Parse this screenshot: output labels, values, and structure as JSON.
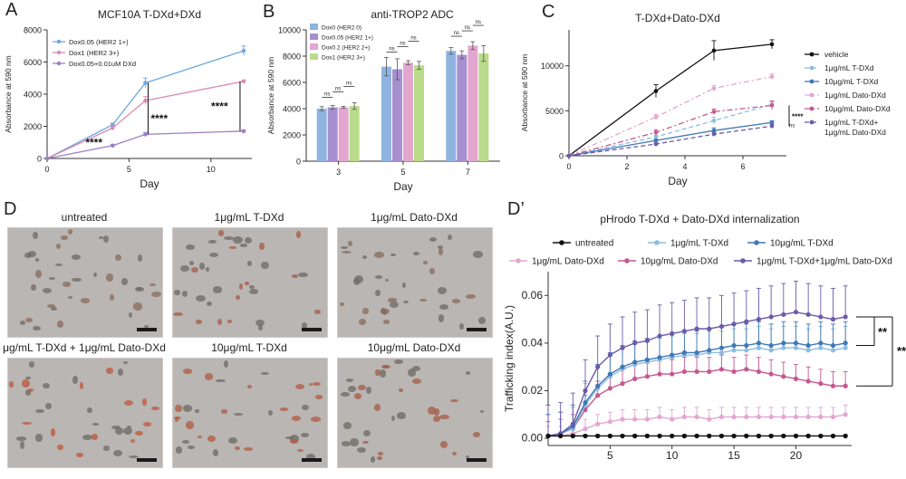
{
  "panels": {
    "A": {
      "letter": "A"
    },
    "B": {
      "letter": "B"
    },
    "C": {
      "letter": "C"
    },
    "D": {
      "letter": "D"
    },
    "D2": {
      "letter": "D’"
    }
  },
  "chart_data": [
    {
      "id": "A",
      "type": "line",
      "title": "MCF10A T-DXd+DXd",
      "xlabel": "Day",
      "ylabel": "Absorbance at 590 nm",
      "xlim": [
        0,
        12.5
      ],
      "ylim": [
        0,
        8000
      ],
      "xticks": [
        0,
        5,
        10
      ],
      "yticks": [
        0,
        2000,
        4000,
        6000,
        8000
      ],
      "series": [
        {
          "name": "Dox0.05 (HER2 1+)",
          "color": "#6fa8dc",
          "x": [
            0,
            4,
            6,
            12
          ],
          "y": [
            0,
            2100,
            4700,
            6700
          ],
          "err": [
            0,
            100,
            300,
            300
          ]
        },
        {
          "name": "Dox1 (HER2 3+)",
          "color": "#d98cb3",
          "x": [
            0,
            4,
            6,
            12
          ],
          "y": [
            0,
            1900,
            3600,
            4800
          ],
          "err": [
            0,
            100,
            250,
            60
          ]
        },
        {
          "name": "Dox0.05+0.01uM DXd",
          "color": "#9b7fc7",
          "x": [
            0,
            4,
            6,
            12
          ],
          "y": [
            0,
            800,
            1500,
            1700
          ],
          "err": [
            0,
            80,
            120,
            60
          ]
        }
      ],
      "annotations": [
        "****",
        "****",
        "****"
      ]
    },
    {
      "id": "B",
      "type": "bar",
      "title": "anti-TROP2 ADC",
      "xlabel": "Day",
      "ylabel": "Absorbance at 590 nm",
      "ylim": [
        0,
        10000
      ],
      "yticks": [
        0,
        2000,
        4000,
        6000,
        8000,
        10000
      ],
      "categories": [
        "3",
        "5",
        "7"
      ],
      "series": [
        {
          "name": "Dox0 (HER2 0)",
          "color": "#8fb3e0",
          "values": [
            4000,
            7200,
            8400
          ],
          "err": [
            150,
            700,
            250
          ]
        },
        {
          "name": "Dox0.05 (HER2 1+)",
          "color": "#a88fcf",
          "values": [
            4100,
            7000,
            8100
          ],
          "err": [
            150,
            800,
            300
          ]
        },
        {
          "name": "Dox0.2 (HER2 2+)",
          "color": "#e3a6cf",
          "values": [
            4100,
            7500,
            8800
          ],
          "err": [
            80,
            150,
            300
          ]
        },
        {
          "name": "Dox1 (HER2 3+)",
          "color": "#b9db8a",
          "values": [
            4200,
            7300,
            8200
          ],
          "err": [
            250,
            300,
            600
          ]
        }
      ],
      "annotations": [
        "ns"
      ]
    },
    {
      "id": "C",
      "type": "line",
      "title": "T-DXd+Dato-DXd",
      "xlabel": "Day",
      "ylabel": "Absorbance at 590 nm",
      "xlim": [
        0,
        7.5
      ],
      "ylim": [
        0,
        14000
      ],
      "xticks": [
        0,
        2,
        4,
        6
      ],
      "yticks": [
        0,
        5000,
        10000
      ],
      "series": [
        {
          "name": "vehicle",
          "color": "#111111",
          "dash": "",
          "x": [
            0,
            3,
            5,
            7
          ],
          "y": [
            0,
            7200,
            11700,
            12400
          ],
          "err": [
            0,
            700,
            1100,
            500
          ]
        },
        {
          "name": "1μg/mL T-DXd",
          "color": "#8fbbe0",
          "dash": "5,3",
          "x": [
            0,
            3,
            5,
            7
          ],
          "y": [
            0,
            2100,
            3900,
            5700
          ],
          "err": [
            0,
            200,
            400,
            300
          ]
        },
        {
          "name": "10μg/mL T-DXd",
          "color": "#3f78b5",
          "dash": "",
          "x": [
            0,
            3,
            5,
            7
          ],
          "y": [
            0,
            1700,
            2800,
            3700
          ],
          "err": [
            0,
            150,
            300,
            200
          ]
        },
        {
          "name": "1μg/mL Dato-DXd",
          "color": "#e3a6cf",
          "dash": "6,3,2,3",
          "x": [
            0,
            3,
            5,
            7
          ],
          "y": [
            0,
            4300,
            7500,
            8800
          ],
          "err": [
            0,
            300,
            300,
            300
          ]
        },
        {
          "name": "10μg/mL Dato-DXd",
          "color": "#c6578f",
          "dash": "6,3,2,3",
          "x": [
            0,
            3,
            5,
            7
          ],
          "y": [
            0,
            2600,
            4900,
            5600
          ],
          "err": [
            0,
            300,
            300,
            500
          ]
        },
        {
          "name": "1μg/mL T-DXd+ 1μg/mL Dato-DXd",
          "color": "#6c5aa8",
          "dash": "5,3",
          "x": [
            0,
            3,
            5,
            7
          ],
          "y": [
            0,
            1300,
            2400,
            3300
          ],
          "err": [
            0,
            150,
            200,
            200
          ]
        }
      ],
      "annotations": [
        "****",
        "ns"
      ]
    },
    {
      "id": "D2",
      "type": "line",
      "title": "pHrodo T-DXd + Dato-DXd internalization",
      "xlabel": "",
      "ylabel": "Trafficking index(A.U.)",
      "xlim": [
        0,
        24.5
      ],
      "ylim": [
        -0.003,
        0.07
      ],
      "xticks": [
        5,
        10,
        15,
        20
      ],
      "yticks": [
        0.0,
        0.02,
        0.04,
        0.06
      ],
      "ytick_labels": [
        "0.00",
        "0.02",
        "0.04",
        "0.06"
      ],
      "x": [
        0,
        1,
        2,
        3,
        4,
        5,
        6,
        7,
        8,
        9,
        10,
        11,
        12,
        13,
        14,
        15,
        16,
        17,
        18,
        19,
        20,
        21,
        22,
        23,
        24
      ],
      "series": [
        {
          "name": "untreated",
          "color": "#111111",
          "y": [
            0.001,
            0.001,
            0.001,
            0.001,
            0.001,
            0.001,
            0.001,
            0.001,
            0.001,
            0.001,
            0.001,
            0.001,
            0.001,
            0.001,
            0.001,
            0.001,
            0.001,
            0.001,
            0.001,
            0.001,
            0.001,
            0.001,
            0.001,
            0.001,
            0.001
          ],
          "err": 0.0005
        },
        {
          "name": "1μg/mL T-DXd",
          "color": "#8fbbe0",
          "y": [
            0.001,
            0.002,
            0.004,
            0.014,
            0.021,
            0.026,
            0.029,
            0.031,
            0.032,
            0.033,
            0.034,
            0.035,
            0.035,
            0.036,
            0.036,
            0.037,
            0.037,
            0.038,
            0.037,
            0.038,
            0.038,
            0.037,
            0.038,
            0.037,
            0.038
          ],
          "err": 0.009
        },
        {
          "name": "10μg/mL T-DXd",
          "color": "#3f78b5",
          "y": [
            0.001,
            0.002,
            0.005,
            0.015,
            0.022,
            0.027,
            0.03,
            0.032,
            0.033,
            0.034,
            0.035,
            0.036,
            0.036,
            0.037,
            0.038,
            0.039,
            0.039,
            0.04,
            0.039,
            0.04,
            0.04,
            0.039,
            0.04,
            0.039,
            0.04
          ],
          "err": 0.009
        },
        {
          "name": "1μg/mL Dato-DXd",
          "color": "#e3a6cf",
          "y": [
            0.001,
            0.001,
            0.002,
            0.004,
            0.006,
            0.007,
            0.008,
            0.008,
            0.008,
            0.009,
            0.008,
            0.009,
            0.009,
            0.008,
            0.009,
            0.009,
            0.009,
            0.009,
            0.009,
            0.009,
            0.009,
            0.009,
            0.009,
            0.009,
            0.01
          ],
          "err": 0.004
        },
        {
          "name": "10μg/mL Dato-DXd",
          "color": "#c6578f",
          "y": [
            0.001,
            0.002,
            0.004,
            0.012,
            0.018,
            0.021,
            0.023,
            0.025,
            0.026,
            0.027,
            0.027,
            0.028,
            0.028,
            0.028,
            0.029,
            0.028,
            0.029,
            0.028,
            0.027,
            0.026,
            0.025,
            0.024,
            0.023,
            0.022,
            0.022
          ],
          "err": 0.006
        },
        {
          "name": "1μg/mL T-DXd+1μg/mL Dato-DXd",
          "color": "#6c5aa8",
          "y": [
            0.001,
            0.002,
            0.006,
            0.02,
            0.03,
            0.035,
            0.038,
            0.04,
            0.041,
            0.043,
            0.044,
            0.045,
            0.046,
            0.046,
            0.047,
            0.048,
            0.049,
            0.05,
            0.051,
            0.052,
            0.053,
            0.052,
            0.051,
            0.05,
            0.051
          ],
          "err": 0.013
        }
      ],
      "annotations": [
        "**",
        "****"
      ]
    }
  ],
  "micrographs": [
    {
      "label": "untreated",
      "cell_color": "#8a6a5a"
    },
    {
      "label": "1μg/mL T-DXd",
      "cell_color": "#a55a45"
    },
    {
      "label": "1μg/mL Dato-DXd",
      "cell_color": "#8a6a5a"
    },
    {
      "label": "μg/mL T-DXd + 1μg/mL Dato-DXd",
      "cell_color": "#c0553a"
    },
    {
      "label": "10μg/mL T-DXd",
      "cell_color": "#b25a40"
    },
    {
      "label": "10μg/mL Dato-DXd",
      "cell_color": "#a55a45"
    }
  ]
}
